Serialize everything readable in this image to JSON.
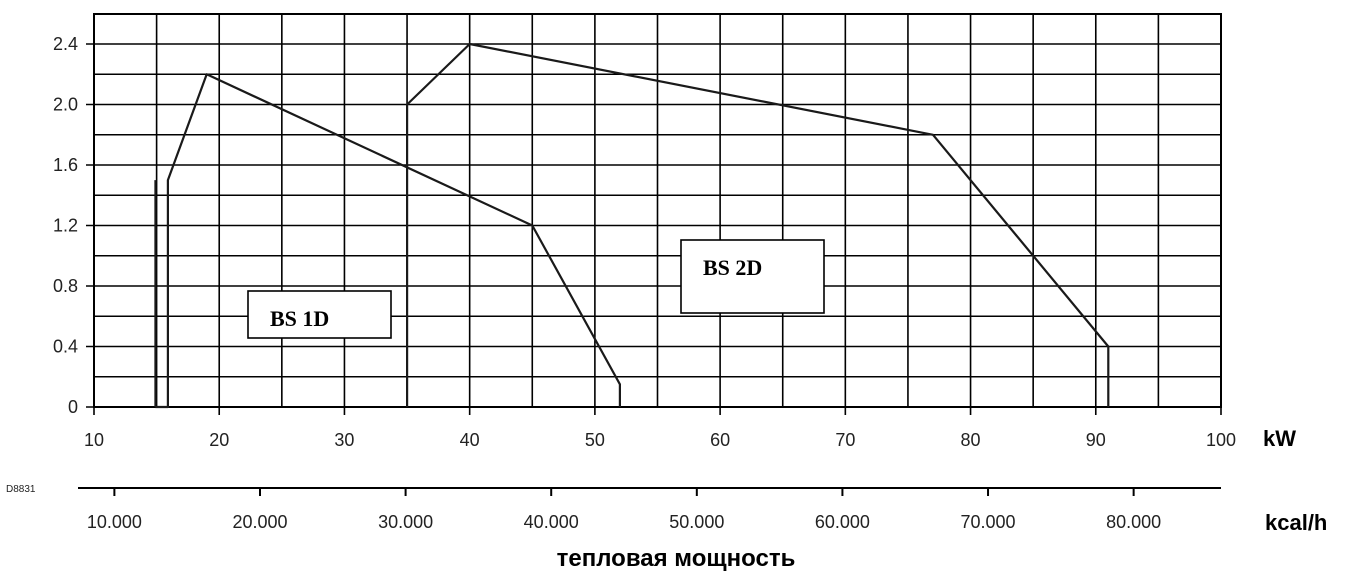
{
  "chart_data": {
    "type": "line",
    "xlabel": "kW",
    "ylabel": "",
    "xlim": [
      10,
      100
    ],
    "ylim": [
      0,
      2.6
    ],
    "x_ticks": [
      "10",
      "20",
      "30",
      "40",
      "50",
      "60",
      "70",
      "80",
      "90",
      "100"
    ],
    "y_ticks": [
      "0",
      "0.4",
      "0.8",
      "1.2",
      "1.6",
      "2.0",
      "2.4"
    ],
    "secondary_axis": {
      "label": "kcal/h",
      "ticks": [
        "10.000",
        "20.000",
        "30.000",
        "40.000",
        "50.000",
        "60.000",
        "70.000",
        "80.000"
      ],
      "kcal_per_kw": 860
    },
    "axis_title": "тепловая мощность",
    "figure_code": "D8831",
    "series": [
      {
        "name": "BS 1D",
        "points": [
          [
            14.9,
            0
          ],
          [
            14.9,
            0
          ],
          [
            15.9,
            0
          ],
          [
            15.9,
            1.5
          ],
          [
            19,
            2.2
          ],
          [
            45,
            1.2
          ],
          [
            52,
            0.15
          ],
          [
            52,
            0
          ]
        ]
      },
      {
        "name": "BS 2D",
        "points": [
          [
            35,
            0
          ],
          [
            35,
            2.0
          ],
          [
            40,
            2.4
          ],
          [
            77,
            1.8
          ],
          [
            91,
            0.4
          ],
          [
            91,
            0
          ]
        ]
      }
    ],
    "series_left_edge": [
      [
        14.9,
        0
      ],
      [
        14.9,
        0.0
      ]
    ],
    "grid": true,
    "legend": "inline boxes"
  }
}
